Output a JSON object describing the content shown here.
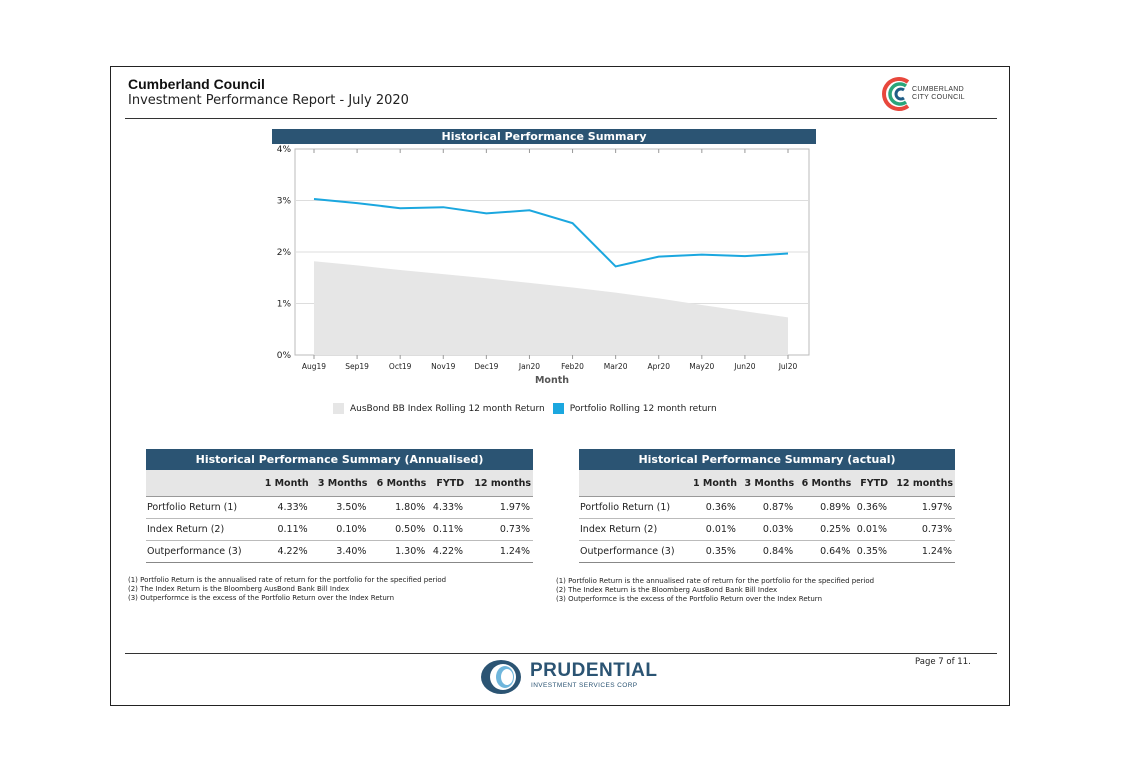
{
  "header": {
    "title": "Cumberland Council",
    "subtitle": "Investment Performance Report - July 2020",
    "logo_text_line1": "CUMBERLAND",
    "logo_text_line2": "CITY COUNCIL"
  },
  "chart_data": {
    "type": "line",
    "title": "Historical Performance Summary",
    "xlabel": "Month",
    "ylabel": "",
    "categories": [
      "Aug19",
      "Sep19",
      "Oct19",
      "Nov19",
      "Dec19",
      "Jan20",
      "Feb20",
      "Mar20",
      "Apr20",
      "May20",
      "Jun20",
      "Jul20"
    ],
    "yticks": [
      "0%",
      "1%",
      "2%",
      "3%",
      "4%"
    ],
    "ylim": [
      0,
      4
    ],
    "grid": true,
    "legend_position": "bottom",
    "series": [
      {
        "name": "AusBond BB Index Rolling 12 month Return",
        "kind": "area",
        "color": "#e6e6e6",
        "values": [
          1.82,
          1.74,
          1.65,
          1.57,
          1.49,
          1.4,
          1.31,
          1.21,
          1.1,
          0.97,
          0.85,
          0.73
        ]
      },
      {
        "name": "Portfolio Rolling 12 month return",
        "kind": "line",
        "color": "#1ba7df",
        "values": [
          3.03,
          2.95,
          2.85,
          2.87,
          2.75,
          2.81,
          2.56,
          1.72,
          1.91,
          1.95,
          1.92,
          1.97
        ]
      }
    ]
  },
  "tables": {
    "annualised": {
      "title": "Historical Performance Summary (Annualised)",
      "headers": [
        "",
        "1 Month",
        "3 Months",
        "6 Months",
        "FYTD",
        "12 months"
      ],
      "rows": [
        [
          "Portfolio Return (1)",
          "4.33%",
          "3.50%",
          "1.80%",
          "4.33%",
          "1.97%"
        ],
        [
          "Index Return (2)",
          "0.11%",
          "0.10%",
          "0.50%",
          "0.11%",
          "0.73%"
        ],
        [
          "Outperformance (3)",
          "4.22%",
          "3.40%",
          "1.30%",
          "4.22%",
          "1.24%"
        ]
      ],
      "notes": [
        "(1) Portfolio Return is the annualised rate of return for the portfolio for the specified period",
        "(2) The Index Return is the Bloomberg AusBond Bank Bill Index",
        "(3) Outperformce is the excess of the Portfolio Return over the Index Return"
      ]
    },
    "actual": {
      "title": "Historical Performance Summary (actual)",
      "headers": [
        "",
        "1 Month",
        "3 Months",
        "6 Months",
        "FYTD",
        "12 months"
      ],
      "rows": [
        [
          "Portfolio Return (1)",
          "0.36%",
          "0.87%",
          "0.89%",
          "0.36%",
          "1.97%"
        ],
        [
          "Index Return (2)",
          "0.01%",
          "0.03%",
          "0.25%",
          "0.01%",
          "0.73%"
        ],
        [
          "Outperformance (3)",
          "0.35%",
          "0.84%",
          "0.64%",
          "0.35%",
          "1.24%"
        ]
      ],
      "notes": [
        "(1) Portfolio Return is the annualised rate of return for the portfolio for the specified period",
        "(2) The Index Return is the Bloomberg AusBond Bank Bill Index",
        "(3) Outperformce is the excess of the Portfolio Return over the Index Return"
      ]
    }
  },
  "footer": {
    "company_name": "PRUDENTIAL",
    "company_sub": "INVESTMENT SERVICES CORP",
    "page_label": "Page 7 of 11."
  }
}
